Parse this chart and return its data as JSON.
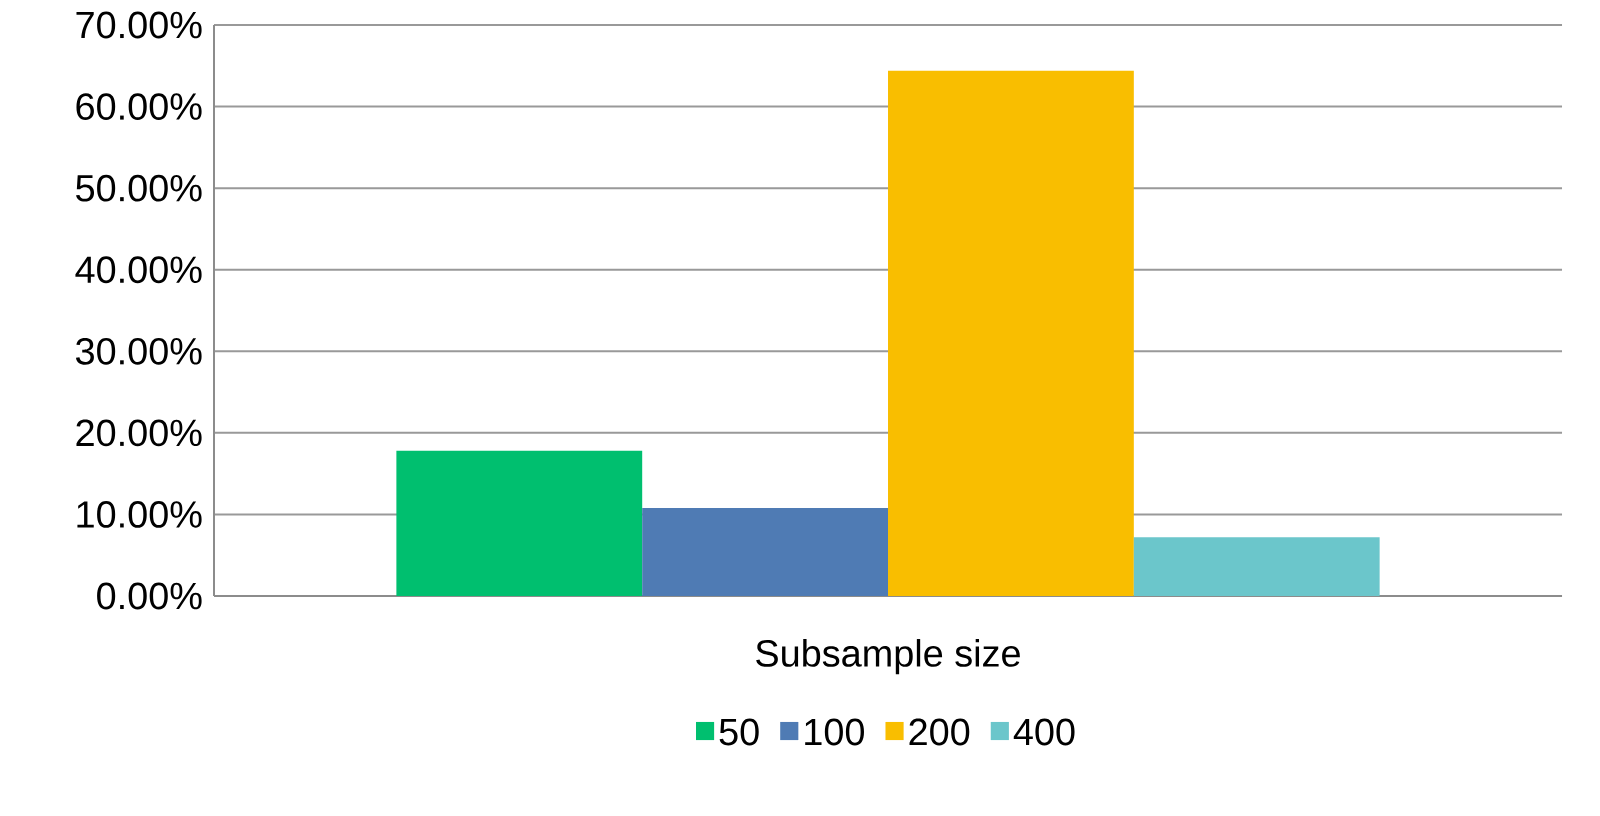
{
  "chart_data": {
    "type": "bar",
    "categories": [
      "Subsample size"
    ],
    "series": [
      {
        "name": "50",
        "color": "#00bf6f",
        "values": [
          17.8
        ]
      },
      {
        "name": "100",
        "color": "#4f7bb4",
        "values": [
          10.8
        ]
      },
      {
        "name": "200",
        "color": "#f9be00",
        "values": [
          64.4
        ]
      },
      {
        "name": "400",
        "color": "#6bc6cb",
        "values": [
          7.2
        ]
      }
    ],
    "ylim": [
      0,
      70
    ],
    "yticks": [
      {
        "value": 0,
        "label": "0.00%"
      },
      {
        "value": 10,
        "label": "10.00%"
      },
      {
        "value": 20,
        "label": "20.00%"
      },
      {
        "value": 30,
        "label": "30.00%"
      },
      {
        "value": 40,
        "label": "40.00%"
      },
      {
        "value": 50,
        "label": "50.00%"
      },
      {
        "value": 60,
        "label": "60.00%"
      },
      {
        "value": 70,
        "label": "70.00%"
      }
    ],
    "grid": "y",
    "legend": "bottom"
  }
}
